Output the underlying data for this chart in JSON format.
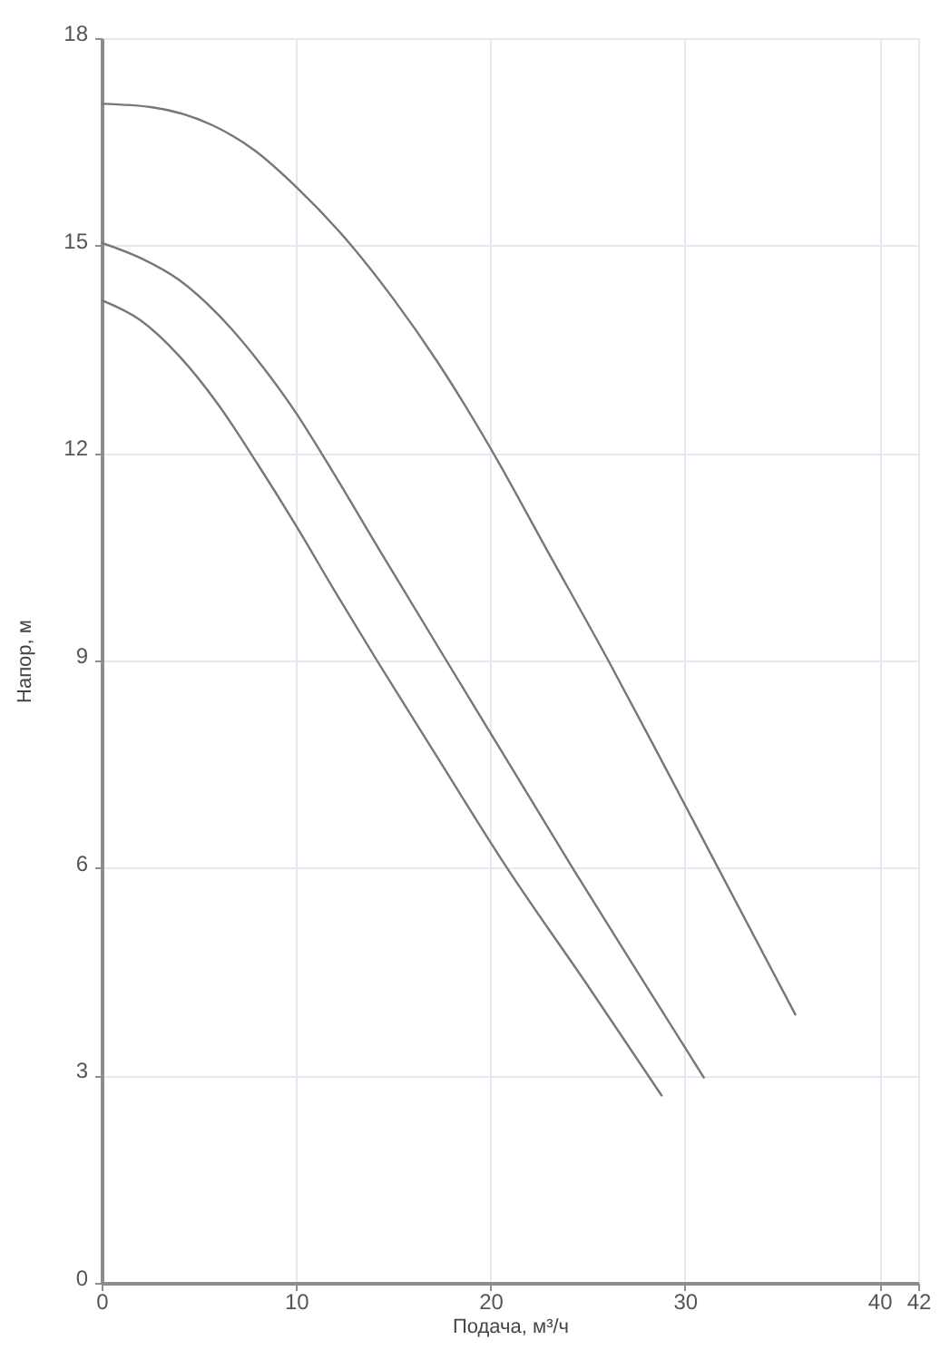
{
  "chart_data": {
    "type": "line",
    "xlabel": "Подача, м³/ч",
    "ylabel": "Напор, м",
    "xlim": [
      0,
      42
    ],
    "xticks": [
      0,
      10,
      20,
      30,
      40,
      42
    ],
    "ylim": [
      0,
      18
    ],
    "yticks": [
      0,
      3,
      6,
      9,
      12,
      15,
      18
    ],
    "grid": true,
    "series": [
      {
        "color": "#777777",
        "x": [
          0,
          2.6,
          5.7,
          7.9,
          10,
          12.85,
          15.03,
          17.27,
          20,
          22.9,
          26.06,
          28.9,
          31.65,
          35.68
        ],
        "values": [
          17.05,
          17.0,
          16.74,
          16.37,
          15.85,
          15.0,
          14.22,
          13.32,
          12.07,
          10.6,
          9.0,
          7.5,
          6.03,
          3.88
        ]
      },
      {
        "color": "#777777",
        "x": [
          0,
          2,
          4,
          6,
          8,
          10,
          11.3,
          14.5,
          17.73,
          21,
          24.22,
          27.6,
          30.97
        ],
        "values": [
          15.04,
          14.82,
          14.5,
          14.0,
          13.35,
          12.58,
          12.0,
          10.5,
          9.0,
          7.49,
          6.0,
          4.48,
          2.97
        ]
      },
      {
        "color": "#777777",
        "x": [
          0,
          2,
          4,
          6,
          8,
          10,
          12,
          14.16,
          17.2,
          20.85,
          25,
          28.8
        ],
        "values": [
          14.21,
          13.92,
          13.4,
          12.7,
          11.85,
          10.95,
          10.0,
          9.0,
          7.63,
          6.0,
          4.3,
          2.71
        ]
      }
    ]
  }
}
